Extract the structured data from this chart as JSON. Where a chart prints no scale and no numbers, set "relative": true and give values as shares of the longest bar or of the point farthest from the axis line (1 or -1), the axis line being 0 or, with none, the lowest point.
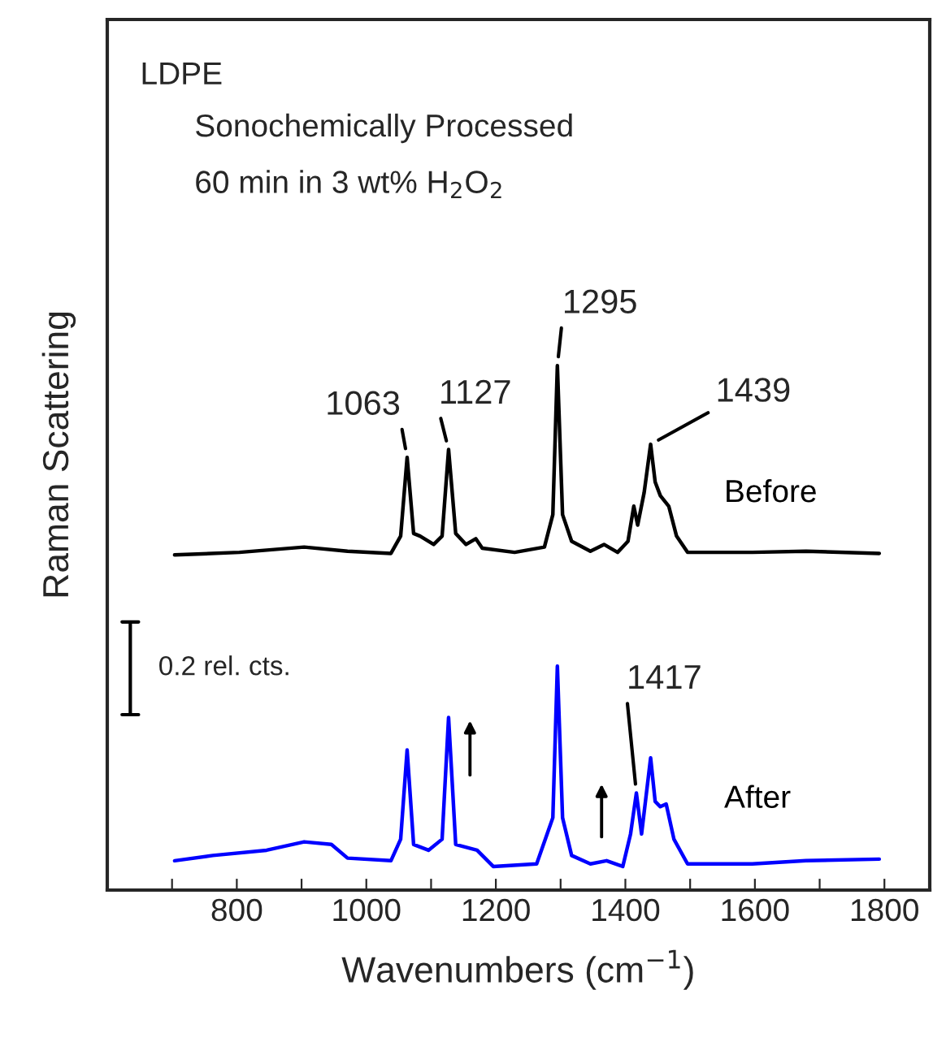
{
  "chart_data": {
    "type": "line",
    "relative": true,
    "xlabel": "Wavenumbers (cm$^{−1}$)",
    "ylabel": "Raman Scattering",
    "xlim": [
      600,
      1870
    ],
    "xticks": [
      {
        "value": 600,
        "label": null
      },
      {
        "value": 700,
        "label": null
      },
      800,
      {
        "value": 900,
        "label": null
      },
      1000,
      {
        "value": 1100,
        "label": null
      },
      1200,
      {
        "value": 1300,
        "label": null
      },
      1400,
      {
        "value": 1500,
        "label": null
      },
      1600,
      {
        "value": 1700,
        "label": null
      },
      1800
    ],
    "tick_labels": "x",
    "grid": false,
    "legend": false,
    "marker": "none",
    "line_style": "solid",
    "series": [
      {
        "name": "Before",
        "color": "#000000",
        "x": [
          704,
          804,
          904,
          971,
          1038,
          1053,
          1063,
          1073,
          1083,
          1104,
          1117,
          1127,
          1138,
          1154,
          1169,
          1179,
          1229,
          1275,
          1288,
          1295,
          1303,
          1317,
          1346,
          1367,
          1388,
          1404,
          1413,
          1419,
          1429,
          1439,
          1446,
          1454,
          1467,
          1479,
          1496,
          1596,
          1679,
          1792
        ],
        "values": [
          0.639,
          0.644,
          0.654,
          0.646,
          0.642,
          0.675,
          0.825,
          0.68,
          0.675,
          0.659,
          0.675,
          0.84,
          0.68,
          0.659,
          0.67,
          0.652,
          0.644,
          0.654,
          0.716,
          1.0,
          0.716,
          0.665,
          0.646,
          0.659,
          0.644,
          0.665,
          0.732,
          0.696,
          0.758,
          0.85,
          0.778,
          0.752,
          0.732,
          0.675,
          0.644,
          0.644,
          0.646,
          0.642
        ]
      },
      {
        "name": "After",
        "color": "#0000ff",
        "x": [
          704,
          763,
          846,
          904,
          946,
          971,
          1038,
          1053,
          1063,
          1073,
          1096,
          1117,
          1127,
          1138,
          1171,
          1196,
          1263,
          1288,
          1295,
          1303,
          1317,
          1346,
          1371,
          1396,
          1408,
          1417,
          1425,
          1439,
          1446,
          1454,
          1463,
          1475,
          1496,
          1596,
          1679,
          1792
        ],
        "values": [
          0.056,
          0.066,
          0.076,
          0.092,
          0.087,
          0.061,
          0.056,
          0.097,
          0.267,
          0.087,
          0.076,
          0.097,
          0.329,
          0.087,
          0.076,
          0.045,
          0.05,
          0.138,
          0.427,
          0.138,
          0.066,
          0.05,
          0.056,
          0.045,
          0.107,
          0.185,
          0.107,
          0.252,
          0.169,
          0.159,
          0.164,
          0.097,
          0.05,
          0.05,
          0.056,
          0.059
        ]
      }
    ],
    "annotations": [
      "LDPE",
      "Sonochemically Processed",
      "60 min in 3 wt% H$_{2}$O$_{2}$",
      {
        "text": "1063",
        "x": 1063,
        "y": 0.825
      },
      {
        "text": "1127",
        "x": 1127,
        "y": 0.84
      },
      {
        "text": "1295",
        "x": 1295,
        "y": 1.0
      },
      {
        "text": "1439",
        "x": 1439,
        "y": 0.85
      },
      {
        "text": "1417",
        "x": 1417,
        "y": 0.185
      },
      "0.2 rel. cts."
    ]
  }
}
